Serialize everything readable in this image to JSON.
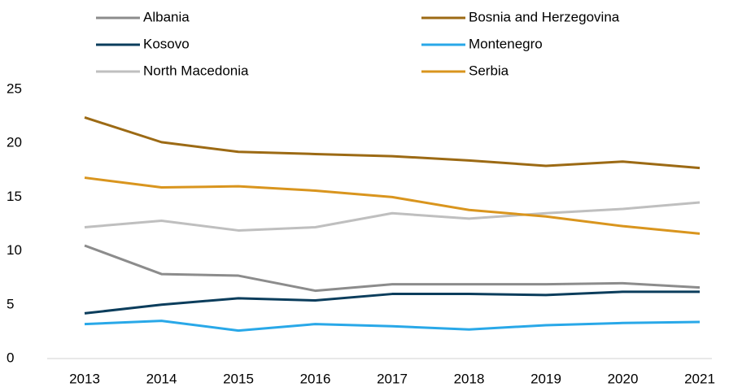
{
  "chart_data": {
    "type": "line",
    "categories": [
      "2013",
      "2014",
      "2015",
      "2016",
      "2017",
      "2018",
      "2019",
      "2020",
      "2021"
    ],
    "series": [
      {
        "name": "Albania",
        "color": "#8c8c8c",
        "values": [
          10.5,
          7.85,
          7.7,
          6.3,
          6.9,
          6.9,
          6.9,
          7.0,
          6.6
        ]
      },
      {
        "name": "Bosnia and Herzegovina",
        "color": "#9c6a14",
        "values": [
          22.4,
          20.1,
          19.2,
          19.0,
          18.8,
          18.4,
          17.9,
          18.3,
          17.7
        ]
      },
      {
        "name": "Kosovo",
        "color": "#0b3d5c",
        "values": [
          4.2,
          5.0,
          5.6,
          5.4,
          6.0,
          6.0,
          5.9,
          6.2,
          6.2
        ]
      },
      {
        "name": "Montenegro",
        "color": "#29a8e8",
        "values": [
          3.2,
          3.5,
          2.6,
          3.2,
          3.0,
          2.7,
          3.1,
          3.3,
          3.4
        ]
      },
      {
        "name": "North Macedonia",
        "color": "#bfbfbf",
        "values": [
          12.2,
          12.8,
          11.9,
          12.2,
          13.5,
          13.0,
          13.5,
          13.9,
          14.5
        ]
      },
      {
        "name": "Serbia",
        "color": "#d9951e",
        "values": [
          16.8,
          15.9,
          16.0,
          15.6,
          15.0,
          13.8,
          13.2,
          12.3,
          11.6
        ]
      }
    ],
    "ylim": [
      0,
      25
    ],
    "yticks": [
      0,
      5,
      10,
      15,
      20,
      25
    ],
    "grid": false,
    "legend": "top"
  }
}
